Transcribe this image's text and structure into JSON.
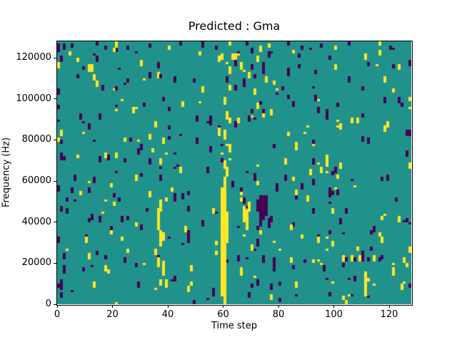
{
  "figure": {
    "background": "#ffffff"
  },
  "chart_data": {
    "type": "heatmap",
    "title": "Predicted : Gma",
    "xlabel": "Time step",
    "ylabel": "Frequency (Hz)",
    "x_range": [
      0,
      128
    ],
    "y_range": [
      0,
      128000
    ],
    "x_ticks": [
      0,
      20,
      40,
      60,
      80,
      100,
      120
    ],
    "y_ticks": [
      0,
      20000,
      40000,
      60000,
      80000,
      100000,
      120000
    ],
    "grid_size": [
      128,
      128
    ],
    "grid": false,
    "legend": "none",
    "colormap": "viridis-3level",
    "colors": {
      "background_value": "#21918c",
      "low_value": "#440154",
      "high_value": "#fde725",
      "frame": "#000000",
      "text": "#000000"
    },
    "cells": {
      "run_format": [
        "col",
        "bottom_row",
        "length"
      ],
      "yellow_runs": [
        [
          59,
          4,
          53
        ],
        [
          60,
          0,
          62
        ],
        [
          61,
          30,
          15
        ],
        [
          61,
          62,
          5
        ],
        [
          60,
          66,
          4
        ],
        [
          62,
          74,
          4
        ],
        [
          60,
          80,
          5
        ],
        [
          61,
          90,
          4
        ],
        [
          60,
          97,
          4
        ],
        [
          62,
          104,
          3
        ],
        [
          36,
          36,
          11
        ],
        [
          36,
          18,
          5
        ],
        [
          37,
          28,
          8
        ],
        [
          37,
          45,
          6
        ],
        [
          38,
          14,
          7
        ],
        [
          38,
          31,
          4
        ],
        [
          39,
          8,
          4
        ],
        [
          37,
          9,
          3
        ],
        [
          35,
          24,
          3
        ],
        [
          67,
          40,
          8
        ],
        [
          68,
          36,
          10
        ],
        [
          69,
          45,
          5
        ],
        [
          77,
          2,
          3
        ],
        [
          66,
          14,
          4
        ],
        [
          70,
          26,
          3
        ],
        [
          103,
          21,
          3
        ],
        [
          106,
          21,
          3
        ],
        [
          109,
          21,
          3
        ],
        [
          114,
          21,
          3
        ],
        [
          111,
          4,
          12
        ],
        [
          117,
          30,
          3
        ],
        [
          121,
          14,
          4
        ],
        [
          123,
          40,
          3
        ],
        [
          66,
          114,
          4
        ],
        [
          69,
          110,
          3
        ],
        [
          72,
          118,
          3
        ],
        [
          75,
          108,
          3
        ],
        [
          62,
          112,
          4
        ],
        [
          58,
          118,
          3
        ],
        [
          71,
          102,
          3
        ],
        [
          11,
          113,
          4
        ],
        [
          12,
          113,
          4
        ],
        [
          21,
          125,
          3
        ],
        [
          40,
          124,
          2
        ],
        [
          62,
          126,
          2
        ],
        [
          76,
          125,
          2
        ],
        [
          100,
          124,
          2
        ],
        [
          116,
          126,
          2
        ],
        [
          1,
          82,
          3
        ],
        [
          1,
          78,
          2
        ],
        [
          10,
          30,
          3
        ],
        [
          13,
          8,
          3
        ],
        [
          28,
          60,
          3
        ],
        [
          45,
          96,
          3
        ],
        [
          90,
          50,
          3
        ],
        [
          97,
          70,
          3
        ],
        [
          108,
          88,
          3
        ],
        [
          118,
          108,
          3
        ],
        [
          125,
          20,
          3
        ],
        [
          56,
          44,
          3
        ],
        [
          33,
          80,
          3
        ],
        [
          48,
          16,
          3
        ],
        [
          86,
          8,
          3
        ],
        [
          94,
          30,
          3
        ]
      ],
      "purple_runs": [
        [
          73,
          38,
          15
        ],
        [
          74,
          41,
          12
        ],
        [
          75,
          43,
          10
        ],
        [
          72,
          45,
          6
        ],
        [
          76,
          37,
          5
        ],
        [
          74,
          20,
          4
        ],
        [
          72,
          28,
          4
        ],
        [
          78,
          18,
          5
        ],
        [
          79,
          55,
          4
        ],
        [
          71,
          60,
          4
        ],
        [
          104,
          21,
          2
        ],
        [
          107,
          21,
          2
        ],
        [
          110,
          21,
          2
        ],
        [
          112,
          21,
          2
        ],
        [
          116,
          21,
          2
        ],
        [
          67,
          106,
          4
        ],
        [
          70,
          114,
          3
        ],
        [
          64,
          104,
          3
        ],
        [
          74,
          112,
          3
        ],
        [
          61,
          108,
          3
        ],
        [
          126,
          82,
          3
        ],
        [
          127,
          82,
          3
        ],
        [
          127,
          116,
          3
        ],
        [
          126,
          40,
          2
        ],
        [
          127,
          8,
          2
        ],
        [
          0,
          30,
          3
        ],
        [
          0,
          55,
          3
        ],
        [
          1,
          10,
          2
        ],
        [
          2,
          70,
          2
        ],
        [
          0,
          95,
          2
        ],
        [
          1,
          118,
          3
        ],
        [
          0,
          123,
          4
        ],
        [
          2,
          124,
          3
        ],
        [
          3,
          44,
          3
        ],
        [
          1,
          78,
          2
        ],
        [
          2,
          16,
          3
        ],
        [
          0,
          8,
          2
        ],
        [
          1,
          70,
          4
        ],
        [
          2,
          22,
          3
        ],
        [
          1,
          45,
          3
        ],
        [
          5,
          125,
          2
        ],
        [
          14,
          126,
          2
        ],
        [
          25,
          124,
          2
        ],
        [
          52,
          125,
          3
        ],
        [
          57,
          124,
          2
        ],
        [
          83,
          126,
          2
        ],
        [
          95,
          125,
          2
        ],
        [
          120,
          124,
          2
        ],
        [
          33,
          125,
          2
        ],
        [
          44,
          126,
          2
        ],
        [
          68,
          126,
          2
        ],
        [
          88,
          124,
          2
        ],
        [
          105,
          126,
          2
        ],
        [
          56,
          5,
          3
        ],
        [
          42,
          50,
          4
        ],
        [
          30,
          36,
          3
        ],
        [
          18,
          70,
          3
        ],
        [
          8,
          90,
          3
        ],
        [
          50,
          78,
          3
        ],
        [
          64,
          86,
          3
        ],
        [
          82,
          60,
          3
        ],
        [
          92,
          44,
          3
        ],
        [
          100,
          64,
          3
        ],
        [
          112,
          78,
          3
        ],
        [
          85,
          96,
          3
        ],
        [
          37,
          60,
          3
        ],
        [
          24,
          20,
          3
        ],
        [
          15,
          40,
          3
        ],
        [
          6,
          60,
          3
        ],
        [
          96,
          16,
          3
        ],
        [
          104,
          44,
          3
        ],
        [
          119,
          60,
          3
        ],
        [
          47,
          30,
          3
        ],
        [
          54,
          64,
          3
        ],
        [
          29,
          8,
          3
        ],
        [
          20,
          52,
          2
        ],
        [
          9,
          16,
          2
        ],
        [
          70,
          8,
          2
        ],
        [
          89,
          20,
          2
        ],
        [
          98,
          4,
          2
        ],
        [
          113,
          34,
          2
        ],
        [
          122,
          50,
          2
        ],
        [
          31,
          96,
          2
        ],
        [
          16,
          104,
          2
        ],
        [
          7,
          110,
          2
        ],
        [
          49,
          108,
          2
        ],
        [
          55,
          90,
          2
        ],
        [
          81,
          104,
          2
        ],
        [
          93,
          112,
          2
        ],
        [
          101,
          96,
          2
        ],
        [
          110,
          104,
          2
        ],
        [
          124,
          96,
          2
        ]
      ]
    },
    "noise": {
      "seed": 7,
      "runs": 330,
      "min_len": 1,
      "max_len": 3,
      "yellow_ratio": 0.5
    }
  }
}
